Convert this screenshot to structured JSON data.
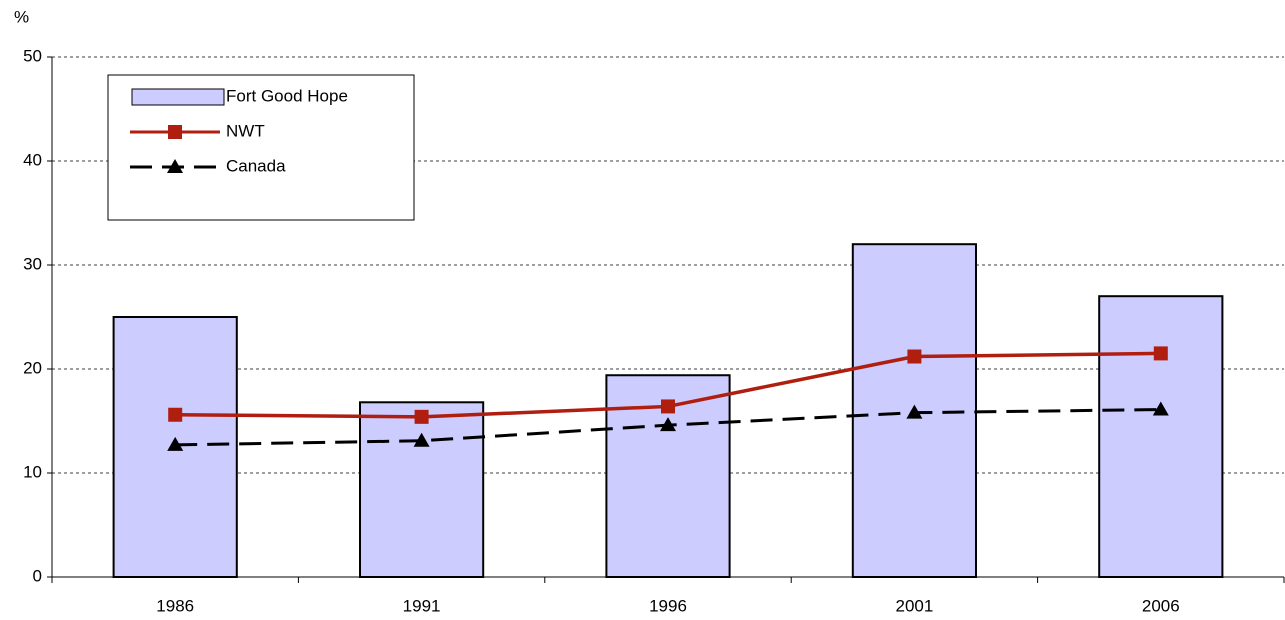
{
  "chart_data": {
    "type": "bar",
    "y_label": "%",
    "categories": [
      "1986",
      "1991",
      "1996",
      "2001",
      "2006"
    ],
    "series": [
      {
        "name": "Fort Good Hope",
        "type": "bar",
        "color": "#ccccff",
        "values": [
          25,
          16.8,
          19.4,
          32,
          27
        ]
      },
      {
        "name": "NWT",
        "type": "line",
        "color": "#b01e10",
        "marker": "square",
        "dashed": false,
        "values": [
          15.6,
          15.4,
          16.4,
          21.2,
          21.5
        ]
      },
      {
        "name": "Canada",
        "type": "line",
        "color": "#000000",
        "marker": "triangle",
        "dashed": true,
        "values": [
          12.7,
          13.1,
          14.6,
          15.8,
          16.1
        ]
      }
    ],
    "ylim": [
      0,
      50
    ],
    "yticks": [
      0,
      10,
      20,
      30,
      40,
      50
    ],
    "grid": true,
    "legend": "upper left"
  }
}
